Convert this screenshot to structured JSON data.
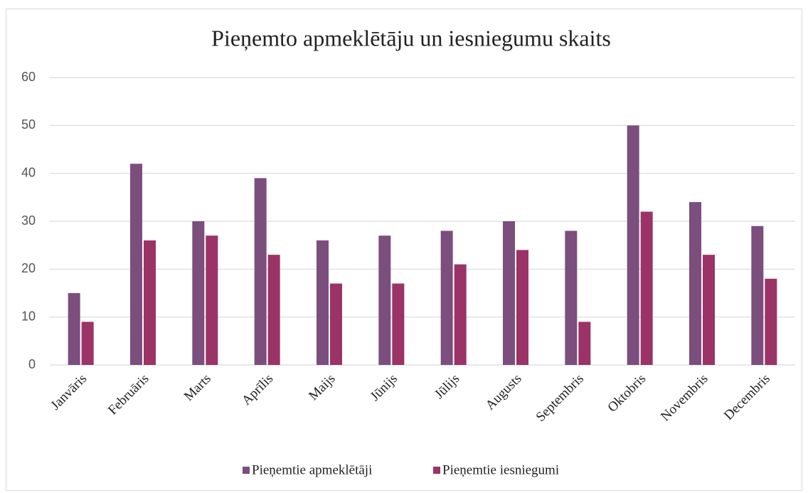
{
  "chart_data": {
    "type": "bar",
    "title": "Pieņemto apmeklētāju un iesniegumu skaits",
    "categories": [
      "Janvāris",
      "Februāris",
      "Marts",
      "Aprīlis",
      "Maijs",
      "Jūnijs",
      "Jūlijs",
      "Augusts",
      "Septembris",
      "Oktobris",
      "Novembris",
      "Decembris"
    ],
    "series": [
      {
        "name": "Pieņemtie apmeklētāji",
        "color": "#7b4e7d",
        "values": [
          15,
          42,
          30,
          39,
          26,
          27,
          28,
          30,
          28,
          50,
          34,
          29
        ]
      },
      {
        "name": "Pieņemtie iesniegumi",
        "color": "#9b3366",
        "values": [
          9,
          26,
          27,
          23,
          17,
          17,
          21,
          24,
          9,
          32,
          23,
          18
        ]
      }
    ],
    "ylim": [
      0,
      60
    ],
    "yticks": [
      0,
      10,
      20,
      30,
      40,
      50,
      60
    ],
    "grid": true,
    "legend": "bottom"
  }
}
